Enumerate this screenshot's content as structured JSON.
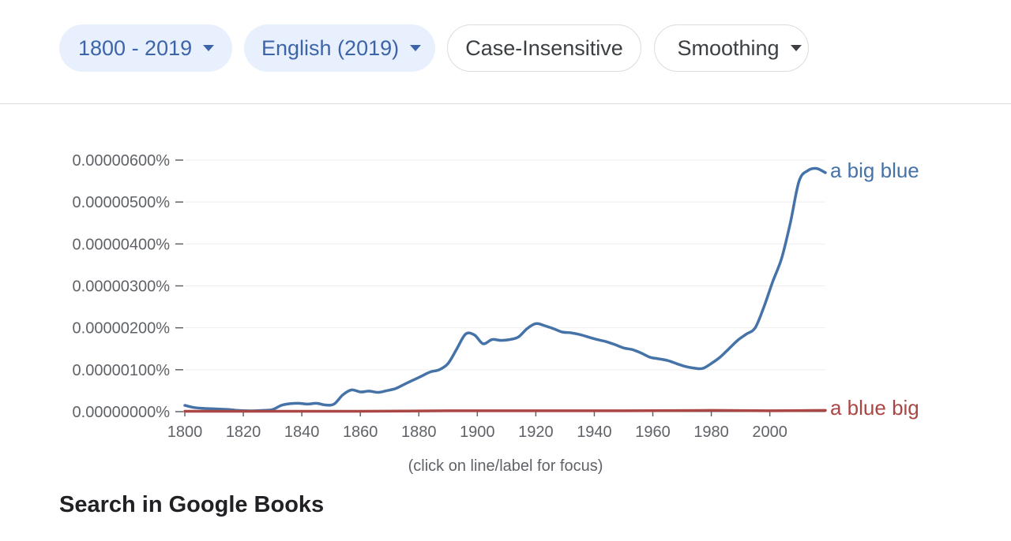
{
  "toolbar": {
    "range_label": "1800 - 2019",
    "corpus_label": "English (2019)",
    "case_label": "Case-Insensitive",
    "smoothing_label": "Smoothing"
  },
  "colors": {
    "series1": "#4572a7",
    "series2": "#aa4643",
    "accent_bg": "#e8f0fe"
  },
  "icons": {
    "dropdown": "caret-down-icon"
  },
  "hint": "(click on line/label for focus)",
  "books": {
    "title": "Search in Google Books"
  },
  "chart_data": {
    "type": "line",
    "title": "",
    "xlabel": "",
    "ylabel": "",
    "xlim": [
      1800,
      2019
    ],
    "ylim": [
      0,
      6e-06
    ],
    "y_ticks": [
      "0.00000000%",
      "0.00000100%",
      "0.00000200%",
      "0.00000300%",
      "0.00000400%",
      "0.00000500%",
      "0.00000600%"
    ],
    "y_tick_values": [
      0,
      1e-06,
      2e-06,
      3e-06,
      4e-06,
      5e-06,
      6e-06
    ],
    "x_ticks": [
      1800,
      1820,
      1840,
      1860,
      1880,
      1900,
      1920,
      1940,
      1960,
      1980,
      2000
    ],
    "grid": true,
    "legend": "end-of-line labels",
    "series": [
      {
        "name": "a big blue",
        "x": [
          1800,
          1803,
          1806,
          1809,
          1812,
          1815,
          1818,
          1821,
          1824,
          1827,
          1830,
          1833,
          1836,
          1839,
          1842,
          1845,
          1848,
          1851,
          1854,
          1857,
          1860,
          1863,
          1866,
          1869,
          1872,
          1875,
          1878,
          1881,
          1884,
          1887,
          1890,
          1893,
          1896,
          1899,
          1902,
          1905,
          1908,
          1911,
          1914,
          1917,
          1920,
          1923,
          1926,
          1929,
          1932,
          1935,
          1938,
          1941,
          1944,
          1947,
          1950,
          1953,
          1956,
          1959,
          1962,
          1965,
          1968,
          1971,
          1974,
          1977,
          1980,
          1983,
          1986,
          1989,
          1992,
          1995,
          1998,
          2001,
          2004,
          2007,
          2010,
          2013,
          2016,
          2019
        ],
        "y": [
          1.5e-07,
          1e-07,
          8e-08,
          7e-08,
          6e-08,
          5e-08,
          3e-08,
          2e-08,
          2e-08,
          3e-08,
          5e-08,
          1.5e-07,
          1.9e-07,
          2e-07,
          1.8e-07,
          2e-07,
          1.6e-07,
          1.8e-07,
          4e-07,
          5.2e-07,
          4.7e-07,
          4.9e-07,
          4.6e-07,
          5e-07,
          5.5e-07,
          6.5e-07,
          7.5e-07,
          8.5e-07,
          9.5e-07,
          1e-06,
          1.15e-06,
          1.5e-06,
          1.85e-06,
          1.83e-06,
          1.62e-06,
          1.72e-06,
          1.7e-06,
          1.72e-06,
          1.78e-06,
          1.98e-06,
          2.1e-06,
          2.05e-06,
          1.98e-06,
          1.9e-06,
          1.88e-06,
          1.84e-06,
          1.78e-06,
          1.72e-06,
          1.67e-06,
          1.6e-06,
          1.52e-06,
          1.48e-06,
          1.4e-06,
          1.3e-06,
          1.26e-06,
          1.22e-06,
          1.15e-06,
          1.08e-06,
          1.04e-06,
          1.03e-06,
          1.15e-06,
          1.3e-06,
          1.5e-06,
          1.7e-06,
          1.85e-06,
          2e-06,
          2.5e-06,
          3.1e-06,
          3.65e-06,
          4.5e-06,
          5.5e-06,
          5.75e-06,
          5.8e-06,
          5.7e-06
        ]
      },
      {
        "name": "a blue big",
        "x": [
          1800,
          1830,
          1860,
          1890,
          1920,
          1950,
          1980,
          2000,
          2019
        ],
        "y": [
          1e-08,
          1e-08,
          1e-08,
          2e-08,
          2e-08,
          2e-08,
          3e-08,
          2e-08,
          3e-08
        ]
      }
    ]
  }
}
